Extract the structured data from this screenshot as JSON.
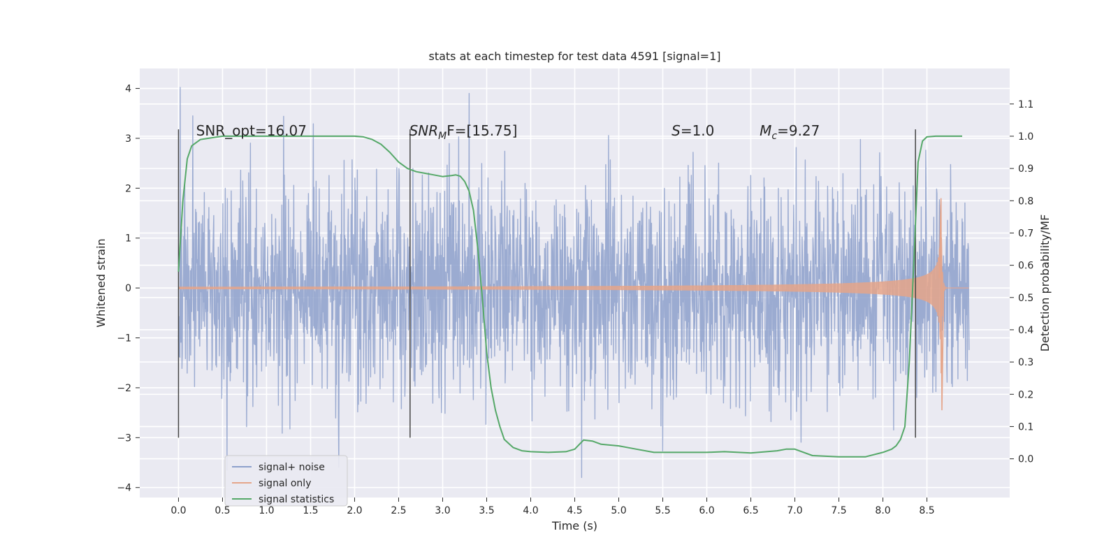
{
  "chart_data": {
    "type": "line",
    "title": "stats at each timestep for test data 4591 [signal=1]",
    "xlabel": "Time (s)",
    "ylabel": "Whitened strain",
    "y2label": "Detection probability/MF",
    "xlim": [
      -0.44,
      9.44
    ],
    "ylim": [
      -4.2,
      4.4
    ],
    "y2lim": [
      -0.12,
      1.21
    ],
    "xticks": [
      "0.0",
      "0.5",
      "1.0",
      "1.5",
      "2.0",
      "2.5",
      "3.0",
      "3.5",
      "4.0",
      "4.5",
      "5.0",
      "5.5",
      "6.0",
      "6.5",
      "7.0",
      "7.5",
      "8.0",
      "8.5"
    ],
    "yticks": [
      "−4",
      "−3",
      "−2",
      "−1",
      "0",
      "1",
      "2",
      "3",
      "4"
    ],
    "y2ticks": [
      "0.0",
      "0.1",
      "0.2",
      "0.3",
      "0.4",
      "0.5",
      "0.6",
      "0.7",
      "0.8",
      "0.9",
      "1.0",
      "1.1"
    ],
    "grid": true,
    "legend_placement": "lower-left",
    "annotations": [
      {
        "key": "snr_opt",
        "text": "SNR_opt=16.07",
        "x": 0.2,
        "y": 3.15
      },
      {
        "key": "snr_mf",
        "text_main": "SNR",
        "text_sub": "M",
        "text_rest": "F=[15.75]",
        "x": 2.62,
        "y": 3.15
      },
      {
        "key": "s",
        "text_main": "S",
        "text_rest": "=1.0",
        "x": 5.6,
        "y": 3.15
      },
      {
        "key": "mc",
        "text_main": "M",
        "text_sub": "c",
        "text_rest": "=9.27",
        "x": 6.6,
        "y": 3.15
      }
    ],
    "vertical_markers": [
      {
        "x": 0.0,
        "y": [
          -3.0,
          3.18
        ]
      },
      {
        "x": 2.63,
        "y": [
          -3.0,
          3.18
        ]
      },
      {
        "x": 8.37,
        "y": [
          -3.0,
          3.18
        ]
      }
    ],
    "series": [
      {
        "name": "signal+ noise",
        "color": "#8da0cb",
        "x_range": [
          0.0,
          8.98
        ],
        "noise_sigma": 1.05,
        "peaks": [
          {
            "x": 0.02,
            "y": 4.02
          },
          {
            "x": 3.3,
            "y": 3.9
          },
          {
            "x": 4.58,
            "y": -3.8
          },
          {
            "x": 0.55,
            "y": -3.65
          }
        ]
      },
      {
        "name": "signal only",
        "color": "#e5a58a",
        "chirp_start": 0.0,
        "chirp_merger": 8.66,
        "chirp_end": 8.98,
        "peak_amplitude": 1.8
      },
      {
        "name": "signal statistics",
        "color": "#55a868",
        "axis": "right",
        "x": [
          0.0,
          0.05,
          0.1,
          0.15,
          0.25,
          0.5,
          1.0,
          1.5,
          2.0,
          2.1,
          2.2,
          2.3,
          2.4,
          2.5,
          2.6,
          2.7,
          2.8,
          2.9,
          3.0,
          3.1,
          3.15,
          3.2,
          3.25,
          3.3,
          3.35,
          3.4,
          3.45,
          3.5,
          3.55,
          3.6,
          3.65,
          3.7,
          3.8,
          3.9,
          4.0,
          4.2,
          4.4,
          4.5,
          4.6,
          4.7,
          4.8,
          5.0,
          5.2,
          5.4,
          5.6,
          6.0,
          6.2,
          6.5,
          6.8,
          6.9,
          7.0,
          7.2,
          7.5,
          7.8,
          8.0,
          8.1,
          8.15,
          8.2,
          8.25,
          8.3,
          8.35,
          8.4,
          8.45,
          8.5,
          8.6,
          8.9
        ],
        "y": [
          0.58,
          0.8,
          0.93,
          0.97,
          0.99,
          1.0,
          1.0,
          1.0,
          1.0,
          0.998,
          0.99,
          0.975,
          0.95,
          0.92,
          0.9,
          0.89,
          0.885,
          0.88,
          0.875,
          0.878,
          0.88,
          0.876,
          0.86,
          0.83,
          0.77,
          0.65,
          0.5,
          0.33,
          0.22,
          0.15,
          0.1,
          0.06,
          0.035,
          0.025,
          0.022,
          0.02,
          0.022,
          0.03,
          0.058,
          0.055,
          0.045,
          0.04,
          0.03,
          0.02,
          0.02,
          0.02,
          0.022,
          0.018,
          0.025,
          0.03,
          0.03,
          0.01,
          0.006,
          0.006,
          0.02,
          0.03,
          0.04,
          0.06,
          0.1,
          0.3,
          0.6,
          0.92,
          0.985,
          0.998,
          1.0,
          1.0
        ]
      }
    ]
  }
}
